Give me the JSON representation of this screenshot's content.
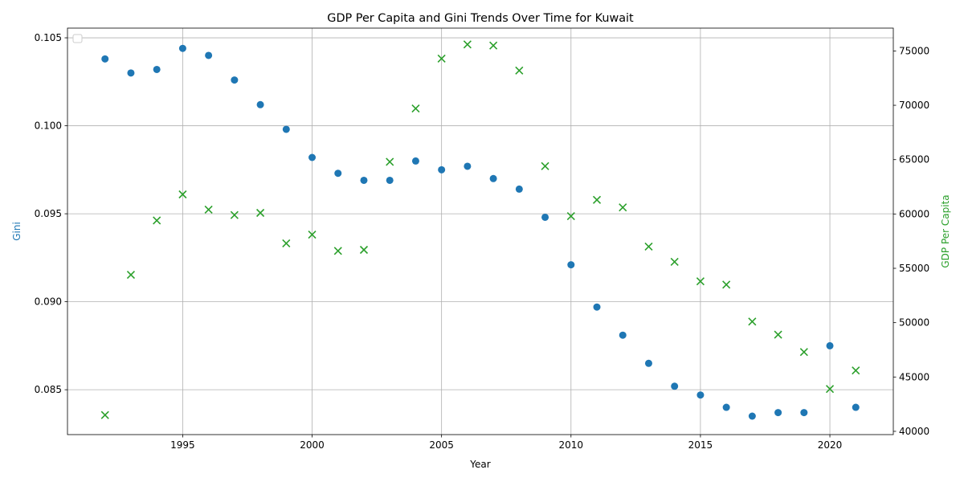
{
  "chart_data": {
    "type": "scatter",
    "title": "GDP Per Capita and Gini Trends Over Time for Kuwait",
    "xlabel": "Year",
    "ylabel_left": "Gini",
    "ylabel_right": "GDP Per Capita",
    "xlim": [
      1990.55,
      2022.45
    ],
    "ylim_left": [
      0.08245,
      0.10555
    ],
    "ylim_right": [
      39700,
      77100
    ],
    "x_ticks": [
      1995,
      2000,
      2005,
      2010,
      2015,
      2020
    ],
    "y_ticks_left": [
      0.085,
      0.09,
      0.095,
      0.1,
      0.105
    ],
    "y_ticks_left_labels": [
      "0.085",
      "0.090",
      "0.095",
      "0.100",
      "0.105"
    ],
    "y_ticks_right": [
      40000,
      45000,
      50000,
      55000,
      60000,
      65000,
      70000,
      75000
    ],
    "y_ticks_right_labels": [
      "40000",
      "45000",
      "50000",
      "55000",
      "60000",
      "65000",
      "70000",
      "75000"
    ],
    "grid": true,
    "legend": "top-left (empty)",
    "colors": {
      "gini": "#1f77b4",
      "gdp": "#2ca02c"
    },
    "x": [
      1992,
      1993,
      1994,
      1995,
      1996,
      1997,
      1998,
      1999,
      2000,
      2001,
      2002,
      2003,
      2004,
      2005,
      2006,
      2007,
      2008,
      2009,
      2010,
      2011,
      2012,
      2013,
      2014,
      2015,
      2016,
      2017,
      2018,
      2019,
      2020,
      2021
    ],
    "series": [
      {
        "marker": "circle",
        "axis": "left",
        "values": [
          0.1038,
          0.103,
          0.1032,
          0.1044,
          0.104,
          0.1026,
          0.1012,
          0.0998,
          0.0982,
          0.0973,
          0.0969,
          0.0969,
          0.098,
          0.0975,
          0.0977,
          0.097,
          0.0964,
          0.0948,
          0.0921,
          0.0897,
          0.0881,
          0.0865,
          0.0852,
          0.0847,
          0.084,
          0.0835,
          0.0837,
          0.0837,
          0.0875,
          0.084
        ]
      },
      {
        "marker": "x",
        "axis": "right",
        "values": [
          41500,
          54400,
          59400,
          61800,
          60400,
          59900,
          60100,
          57300,
          58100,
          56600,
          56700,
          64800,
          69700,
          74300,
          75600,
          75500,
          73200,
          64400,
          59800,
          61300,
          60600,
          57000,
          55600,
          53800,
          53500,
          50100,
          48900,
          47300,
          43900,
          45600
        ]
      }
    ]
  }
}
